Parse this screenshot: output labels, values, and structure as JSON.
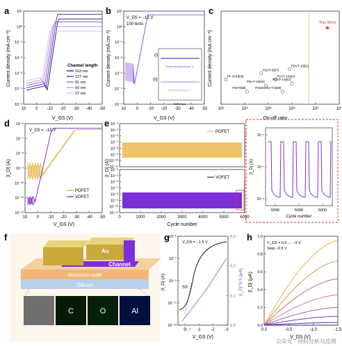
{
  "figure": {
    "panel_letters": [
      "a",
      "b",
      "c",
      "d",
      "e",
      "f",
      "g",
      "h"
    ],
    "watermark": "公众号 · 材料分析与应用"
  },
  "chart_data": [
    {
      "id": "a",
      "type": "line",
      "xlabel": "V_GS (V)",
      "ylabel": "Current density (mA cm⁻²)",
      "xticks": [
        "10",
        "0",
        "-10",
        "-20",
        "-30",
        "-40",
        "-50"
      ],
      "yticks": [
        "10⁻⁵",
        "10⁻⁴",
        "10⁻³",
        "10⁻²",
        "10⁻¹",
        "10⁰",
        "10¹"
      ],
      "xlim": [
        10,
        -50
      ],
      "ylim_log10": [
        -5,
        1
      ],
      "legend_title": "Channel length",
      "series": [
        {
          "name": "163 nm",
          "color": "#3b1f8c",
          "vth": -8,
          "ion_log": 0.5
        },
        {
          "name": "127 nm",
          "color": "#5b35b5",
          "vth": -7,
          "ion_log": 0.8
        },
        {
          "name": "81 nm",
          "color": "#8a63d2",
          "vth": -6,
          "ion_log": 0.3
        },
        {
          "name": "60 nm",
          "color": "#b497e6",
          "vth": -5,
          "ion_log": 0.0
        },
        {
          "name": "37 nm",
          "color": "#d2c0f2",
          "vth": -4,
          "ion_log": -0.3
        }
      ]
    },
    {
      "id": "b",
      "type": "line",
      "annotation": "V_DS = −15 V",
      "annotation2": "100 tests",
      "xlabel": "V_GS (V)",
      "ylabel": "Current density (mA cm⁻²)",
      "xticks": [
        "10",
        "0",
        "-10",
        "-20",
        "-30",
        "-40",
        "-50"
      ],
      "yticks": [
        "10⁻⁵",
        "10⁻⁴",
        "10⁻³",
        "10⁻²",
        "10⁻¹",
        "10⁰",
        "10¹"
      ],
      "xlim": [
        10,
        -50
      ],
      "ylim_log10": [
        -5,
        1
      ],
      "inset": {
        "labels": [
          "(i)",
          "(ii)"
        ],
        "xlabel": "Test times",
        "xticks": [
          "0",
          "20",
          "40",
          "60",
          "80",
          "100"
        ],
        "line_i": "Current density (mA cm⁻²)",
        "line_ii": "Threshold voltage (V)"
      }
    },
    {
      "id": "c",
      "type": "scatter",
      "xlabel": "On-off ratio",
      "ylabel": "Current density (mA cm⁻²)",
      "xticks": [
        "10²",
        "10³",
        "10⁴",
        "10⁵",
        "10⁶",
        "10⁷"
      ],
      "xlim_log10": [
        2,
        7
      ],
      "ylim_log10": [
        -1.5,
        3
      ],
      "points": [
        {
          "label": "PF-3HH[56]",
          "x": 2.2,
          "y": -0.3
        },
        {
          "label": "P3HT[58]",
          "x": 3.1,
          "y": -0.9
        },
        {
          "label": "PDVT-8[57]",
          "x": 3.7,
          "y": 0.0
        },
        {
          "label": "PDVT-10[59]",
          "x": 3.9,
          "y": -0.6
        },
        {
          "label": "PDVT-10[60]",
          "x": 4.3,
          "y": -0.3
        },
        {
          "label": "P(NDI2OD-T2)[58]",
          "x": 4.6,
          "y": -0.9
        },
        {
          "label": "PDVT-10[61]",
          "x": 4.9,
          "y": 0.2
        },
        {
          "label": "PDVT-10[62]",
          "x": 5.0,
          "y": -0.5
        }
      ],
      "highlight": {
        "label": "This Work",
        "x": 6.5,
        "y": 2.2,
        "color": "#e5322d"
      }
    },
    {
      "id": "d",
      "type": "line",
      "annotation": "V_DS = −15 V",
      "xlabel": "V_GS (V)",
      "ylabel": "|I_D| (A)",
      "xticks": [
        "10",
        "0",
        "-10",
        "-20",
        "-30",
        "-40",
        "-50"
      ],
      "yticks": [
        "10⁻¹²",
        "10⁻¹¹",
        "10⁻¹⁰",
        "10⁻⁹",
        "10⁻⁸",
        "10⁻⁷",
        "10⁻⁶"
      ],
      "xlim": [
        10,
        -50
      ],
      "ylim_log10": [
        -12,
        -6
      ],
      "series": [
        {
          "name": "POFET",
          "color": "#e6b84e"
        },
        {
          "name": "VOFET",
          "color": "#8a3fd6"
        }
      ]
    },
    {
      "id": "e",
      "type": "line",
      "ylabel": "|I_D| (A)",
      "xlabel": "Cycle number",
      "xticks": [
        "0",
        "1000",
        "2000",
        "3000",
        "4000",
        "5000",
        "6000"
      ],
      "xlim": [
        0,
        6000
      ],
      "top": {
        "name": "POFET",
        "color": "#f0c36a",
        "yticks": [
          "10⁻¹¹",
          "10⁻¹⁰",
          "10⁻⁹",
          "10⁻⁸",
          "10⁻⁷",
          "10⁻⁶",
          "10⁻⁵",
          "10⁻⁴"
        ]
      },
      "bottom": {
        "name": "VOFET",
        "color": "#7b2fd8",
        "yticks": [
          "10⁻¹¹",
          "10⁻¹⁰",
          "10⁻⁹",
          "10⁻⁸",
          "10⁻⁷",
          "10⁻⁶",
          "10⁻⁵",
          "10⁻⁴"
        ]
      },
      "zoom": {
        "xlabel": "Cycle number",
        "ylabel": "|I_D| (A)",
        "xticks": [
          "5996",
          "5998",
          "6000"
        ],
        "yticks": [
          "10⁻⁹",
          "10⁻⁷",
          "10⁻⁵"
        ]
      }
    },
    {
      "id": "g",
      "type": "line",
      "annotation": "V_DS = −1.5 V",
      "ss_label": "SS",
      "vt_label": "V_T",
      "xlabel": "V_GS (V)",
      "ylabel_left": "|I_D| (A)",
      "ylabel_right": "|I_D|^0.5 (μA)",
      "xticks": [
        "0",
        "-1",
        "-2",
        "-3"
      ],
      "xlim": [
        0.5,
        -3
      ],
      "yticks_left": [
        "10⁻¹³",
        "10⁻¹¹",
        "10⁻⁹",
        "10⁻⁷",
        "10⁻⁵"
      ],
      "yticks_right": [
        "0.0",
        "0.1",
        "0.2",
        "0.3"
      ]
    },
    {
      "id": "h",
      "type": "line",
      "annotation": "V_GS = 0.5 → −3 V",
      "annotation2": "Step −0.5 V",
      "xlabel": "V_DS (V)",
      "ylabel": "|I_D| (μA)",
      "xticks": [
        "0.0",
        "-0.5",
        "-1.0",
        "-1.5"
      ],
      "yticks": [
        "0.0",
        "0.2",
        "0.4",
        "0.6",
        "0.8",
        "1.0"
      ],
      "xlim": [
        0,
        -1.5
      ],
      "ylim": [
        0,
        1.0
      ],
      "curves_end": [
        0.95,
        0.72,
        0.52,
        0.34,
        0.2,
        0.1,
        0.03,
        0.0
      ]
    }
  ],
  "panel_f": {
    "labels": {
      "au": "Au",
      "channel": "Channel",
      "oxide": "Aluminum oxide",
      "silicon": "Silicon"
    },
    "eds": [
      "C",
      "O",
      "Al"
    ]
  }
}
